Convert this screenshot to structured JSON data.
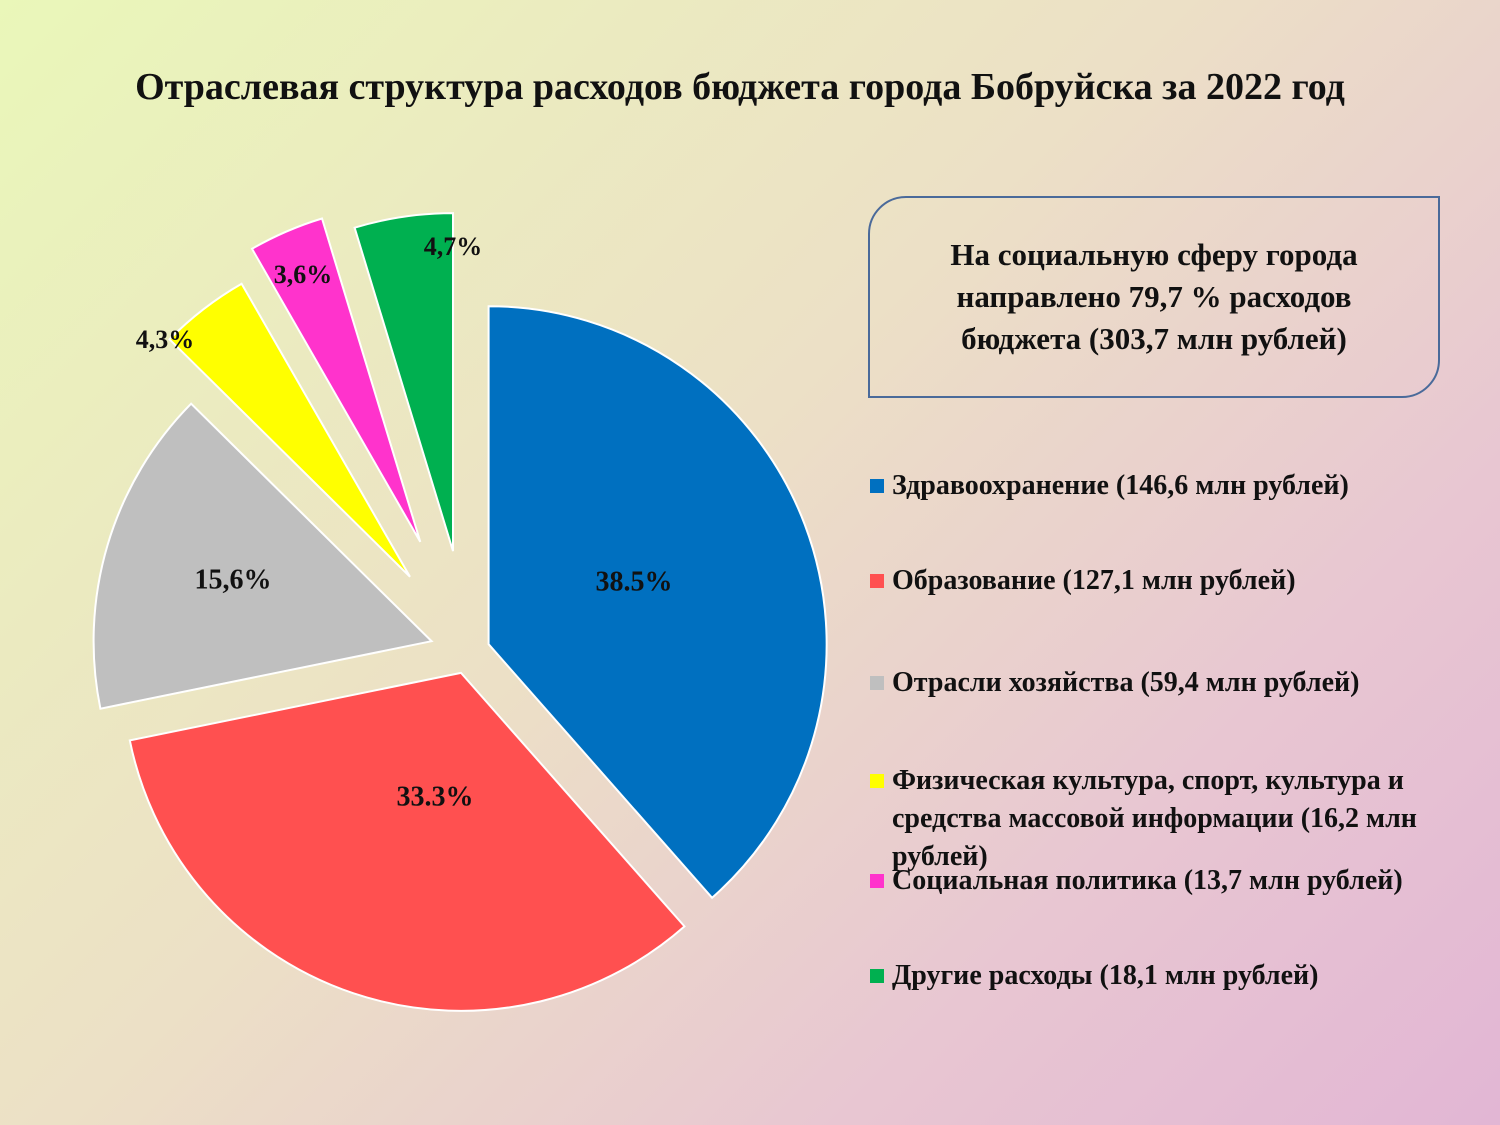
{
  "page": {
    "title": "Отраслевая структура расходов бюджета города Бобруйска за 2022 год",
    "callout": "На социальную сферу города направлено 79,7  % расходов бюджета (303,7 млн рублей)"
  },
  "chart_data": {
    "type": "pie",
    "exploded": true,
    "start_angle_deg": 0,
    "direction": "clockwise",
    "legend_position": "right",
    "slices": [
      {
        "legend": "Здравоохранение (146,6 млн рублей)",
        "value": 38.5,
        "label": "38.5%",
        "color": "#0070c0"
      },
      {
        "legend": "Образование (127,1 млн рублей)",
        "value": 33.3,
        "label": "33.3%",
        "color": "#ff5050"
      },
      {
        "legend": "Отрасли хозяйства (59,4 млн рублей)",
        "value": 15.6,
        "label": "15,6%",
        "color": "#bfbfbf"
      },
      {
        "legend": "Физическая культура, спорт, культура и средства массовой информации (16,2 млн рублей)",
        "value": 4.3,
        "label": "4,3%",
        "color": "#ffff00"
      },
      {
        "legend": "Социальная политика (13,7 млн рублей)",
        "value": 3.6,
        "label": "3,6%",
        "color": "#ff33cc"
      },
      {
        "legend": "Другие расходы (18,1 млн рублей)",
        "value": 4.7,
        "label": "4,7%",
        "color": "#00b050"
      }
    ]
  }
}
